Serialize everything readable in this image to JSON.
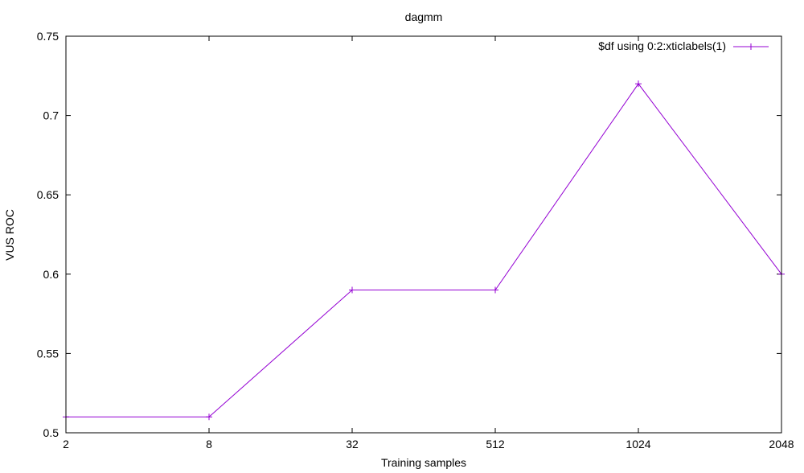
{
  "chart_data": {
    "type": "line",
    "title": "dagmm",
    "xlabel": "Training samples",
    "ylabel": "VUS ROC",
    "categories": [
      "2",
      "8",
      "32",
      "512",
      "1024",
      "2048"
    ],
    "ylim": [
      0.5,
      0.75
    ],
    "yticks": [
      0.5,
      0.55,
      0.6,
      0.65,
      0.7,
      0.75
    ],
    "ytick_labels": [
      "0.5",
      "0.55",
      "0.6",
      "0.65",
      "0.7",
      "0.75"
    ],
    "grid": false,
    "legend_position": "top-right",
    "series": [
      {
        "name": "$df using 0:2:xticlabels(1)",
        "values": [
          0.51,
          0.51,
          0.59,
          0.59,
          0.72,
          0.6
        ],
        "color": "#9400d3",
        "marker": "plus"
      }
    ]
  }
}
